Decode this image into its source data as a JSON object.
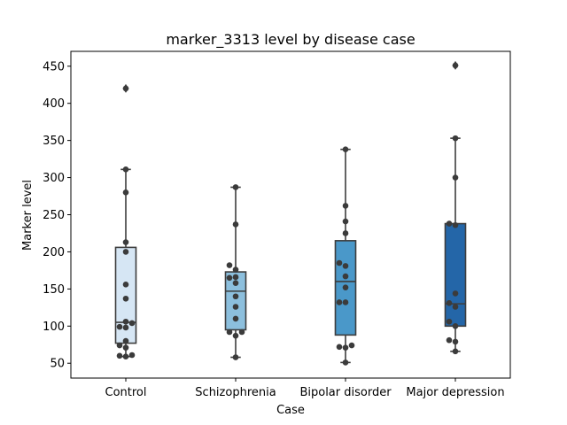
{
  "chart_data": {
    "type": "boxplot",
    "title": "marker_3313 level by disease case",
    "xlabel": "Case",
    "ylabel": "Marker level",
    "ylim": [
      30,
      470
    ],
    "yticks": [
      50,
      100,
      150,
      200,
      250,
      300,
      350,
      400,
      450
    ],
    "grid": false,
    "categories": [
      "Control",
      "Schizophrenia",
      "Bipolar disorder",
      "Major depression"
    ],
    "colors": [
      "#d6e6f4",
      "#8cbfdd",
      "#4a98c9",
      "#2466a8"
    ],
    "boxes": [
      {
        "category": "Control",
        "q1": 77,
        "median": 105,
        "q3": 206,
        "whisker_low": 59,
        "whisker_high": 311,
        "outliers": [
          420
        ]
      },
      {
        "category": "Schizophrenia",
        "q1": 95,
        "median": 147,
        "q3": 173,
        "whisker_low": 58,
        "whisker_high": 287,
        "outliers": []
      },
      {
        "category": "Bipolar disorder",
        "q1": 88,
        "median": 160,
        "q3": 215,
        "whisker_low": 51,
        "whisker_high": 338,
        "outliers": []
      },
      {
        "category": "Major depression",
        "q1": 100,
        "median": 130,
        "q3": 238,
        "whisker_low": 66,
        "whisker_high": 353,
        "outliers": [
          451
        ]
      }
    ],
    "points": [
      {
        "category": "Control",
        "values": [
          420,
          311,
          280,
          213,
          200,
          156,
          137,
          106,
          104,
          99,
          98,
          80,
          74,
          71,
          61,
          60,
          59
        ]
      },
      {
        "category": "Schizophrenia",
        "values": [
          287,
          237,
          182,
          176,
          166,
          165,
          158,
          140,
          126,
          110,
          92,
          92,
          87,
          58
        ]
      },
      {
        "category": "Bipolar disorder",
        "values": [
          338,
          262,
          241,
          225,
          185,
          181,
          167,
          152,
          132,
          132,
          74,
          72,
          71,
          51
        ]
      },
      {
        "category": "Major depression",
        "values": [
          451,
          353,
          300,
          238,
          236,
          144,
          131,
          126,
          106,
          100,
          81,
          79,
          66
        ]
      }
    ]
  }
}
